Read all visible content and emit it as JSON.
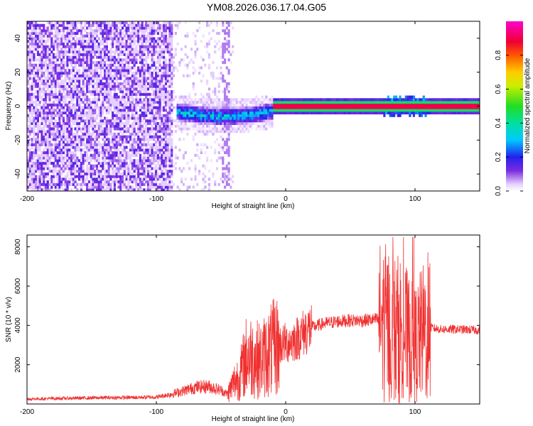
{
  "figure": {
    "title": "YM08.2026.036.17.04.G05"
  },
  "chart_data": [
    {
      "type": "heatmap",
      "title": "YM08.2026.036.17.04.G05",
      "xlabel": "Height of straight line (km)",
      "ylabel": "Frequency (Hz)",
      "xlim": [
        -200,
        150
      ],
      "ylim": [
        -50,
        50
      ],
      "xticks": [
        -200,
        -100,
        0,
        100
      ],
      "yticks": [
        -40,
        -20,
        0,
        20,
        40
      ],
      "colorbar": {
        "label": "Normalized spectral amplitude",
        "range": [
          0,
          1
        ],
        "ticks": [
          0.0,
          0.2,
          0.4,
          0.6,
          0.8
        ]
      },
      "regions": [
        {
          "name": "broadband noise",
          "x_range": [
            -200,
            -88
          ],
          "freq_range": [
            -50,
            50
          ],
          "amplitude": 0.1
        },
        {
          "name": "sparse noise",
          "x_range": [
            -88,
            -40
          ],
          "freq_range": [
            -50,
            50
          ],
          "amplitude": 0.03
        },
        {
          "name": "wandering signal",
          "x_range": [
            -85,
            -10
          ],
          "freq_center": [
            -3,
            -6
          ],
          "amplitude": 0.3
        },
        {
          "name": "carrier line",
          "x_range": [
            -10,
            150
          ],
          "freq_center": 0,
          "amplitude": 0.9
        }
      ]
    },
    {
      "type": "line",
      "xlabel": "Height of straight line (km)",
      "ylabel": "SNR (10 * v/v)",
      "xlim": [
        -200,
        150
      ],
      "ylim": [
        0,
        8600
      ],
      "xticks": [
        -200,
        -100,
        0,
        100
      ],
      "yticks": [
        2000,
        4000,
        6000,
        8000
      ],
      "color": "#f03030",
      "series": [
        {
          "name": "SNR",
          "x": [
            -200,
            -180,
            -160,
            -140,
            -120,
            -100,
            -90,
            -80,
            -70,
            -60,
            -50,
            -45,
            -40,
            -35,
            -30,
            -25,
            -20,
            -15,
            -10,
            -5,
            0,
            5,
            10,
            15,
            20,
            25,
            30,
            40,
            50,
            60,
            70,
            75,
            80,
            85,
            90,
            95,
            100,
            105,
            110,
            115,
            120,
            130,
            140,
            150
          ],
          "y": [
            250,
            280,
            300,
            320,
            330,
            350,
            480,
            650,
            850,
            900,
            700,
            500,
            1100,
            1500,
            2500,
            2400,
            2200,
            2500,
            2800,
            3000,
            3100,
            3200,
            3400,
            3700,
            3900,
            4000,
            4100,
            4200,
            4250,
            4250,
            4300,
            4200,
            4000,
            3800,
            3900,
            3300,
            3000,
            3500,
            3900,
            3850,
            3800,
            3800,
            3780,
            3750
          ]
        }
      ]
    }
  ]
}
